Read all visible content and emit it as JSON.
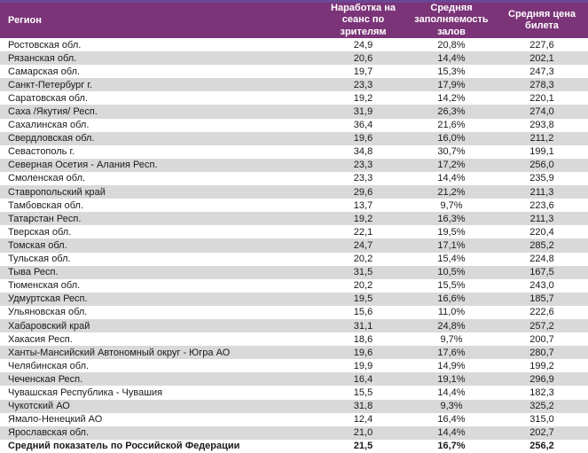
{
  "table": {
    "columns": [
      {
        "label": "Регион"
      },
      {
        "label": "Наработка на сеанс по зрителям"
      },
      {
        "label": "Средняя заполняемость залов"
      },
      {
        "label": "Средняя цена билета"
      }
    ],
    "rows": [
      {
        "region": "Ростовская обл.",
        "sessions": "24,9",
        "occupancy": "20,8%",
        "price": "227,6"
      },
      {
        "region": "Рязанская обл.",
        "sessions": "20,6",
        "occupancy": "14,4%",
        "price": "202,1"
      },
      {
        "region": "Самарская обл.",
        "sessions": "19,7",
        "occupancy": "15,3%",
        "price": "247,3"
      },
      {
        "region": "Санкт-Петербург г.",
        "sessions": "23,3",
        "occupancy": "17,9%",
        "price": "278,3"
      },
      {
        "region": "Саратовская обл.",
        "sessions": "19,2",
        "occupancy": "14,2%",
        "price": "220,1"
      },
      {
        "region": "Саха /Якутия/ Респ.",
        "sessions": "31,9",
        "occupancy": "26,3%",
        "price": "274,0"
      },
      {
        "region": "Сахалинская обл.",
        "sessions": "36,4",
        "occupancy": "21,6%",
        "price": "293,8"
      },
      {
        "region": "Свердловская обл.",
        "sessions": "19,6",
        "occupancy": "16,0%",
        "price": "211,2"
      },
      {
        "region": "Севастополь г.",
        "sessions": "34,8",
        "occupancy": "30,7%",
        "price": "199,1"
      },
      {
        "region": "Северная Осетия - Алания Респ.",
        "sessions": "23,3",
        "occupancy": "17,2%",
        "price": "256,0"
      },
      {
        "region": "Смоленская обл.",
        "sessions": "23,3",
        "occupancy": "14,4%",
        "price": "235,9"
      },
      {
        "region": "Ставропольский край",
        "sessions": "29,6",
        "occupancy": "21,2%",
        "price": "211,3"
      },
      {
        "region": "Тамбовская обл.",
        "sessions": "13,7",
        "occupancy": "9,7%",
        "price": "223,6"
      },
      {
        "region": "Татарстан Респ.",
        "sessions": "19,2",
        "occupancy": "16,3%",
        "price": "211,3"
      },
      {
        "region": "Тверская обл.",
        "sessions": "22,1",
        "occupancy": "19,5%",
        "price": "220,4"
      },
      {
        "region": "Томская обл.",
        "sessions": "24,7",
        "occupancy": "17,1%",
        "price": "285,2"
      },
      {
        "region": "Тульская обл.",
        "sessions": "20,2",
        "occupancy": "15,4%",
        "price": "224,8"
      },
      {
        "region": "Тыва Респ.",
        "sessions": "31,5",
        "occupancy": "10,5%",
        "price": "167,5"
      },
      {
        "region": "Тюменская обл.",
        "sessions": "20,2",
        "occupancy": "15,5%",
        "price": "243,0"
      },
      {
        "region": "Удмуртская Респ.",
        "sessions": "19,5",
        "occupancy": "16,6%",
        "price": "185,7"
      },
      {
        "region": "Ульяновская обл.",
        "sessions": "15,6",
        "occupancy": "11,0%",
        "price": "222,6"
      },
      {
        "region": "Хабаровский край",
        "sessions": "31,1",
        "occupancy": "24,8%",
        "price": "257,2"
      },
      {
        "region": "Хакасия Респ.",
        "sessions": "18,6",
        "occupancy": "9,7%",
        "price": "200,7"
      },
      {
        "region": "Ханты-Мансийский Автономный округ - Югра АО",
        "sessions": "19,6",
        "occupancy": "17,6%",
        "price": "280,7"
      },
      {
        "region": "Челябинская обл.",
        "sessions": "19,9",
        "occupancy": "14,9%",
        "price": "199,2"
      },
      {
        "region": "Чеченская Респ.",
        "sessions": "16,4",
        "occupancy": "19,1%",
        "price": "296,9"
      },
      {
        "region": "Чувашская Республика - Чувашия",
        "sessions": "15,5",
        "occupancy": "14,4%",
        "price": "182,3"
      },
      {
        "region": "Чукотский АО",
        "sessions": "31,8",
        "occupancy": "9,3%",
        "price": "325,2"
      },
      {
        "region": "Ямало-Ненецкий АО",
        "sessions": "12,4",
        "occupancy": "16,4%",
        "price": "315,0"
      },
      {
        "region": "Ярославская обл.",
        "sessions": "21,0",
        "occupancy": "14,4%",
        "price": "202,7"
      }
    ],
    "summary_row": {
      "region": "Средний показатель по Российской Федерации",
      "sessions": "21,5",
      "occupancy": "16,7%",
      "price": "256,2"
    }
  },
  "colors": {
    "top_strip": "#6C4796",
    "header_bg": "#7B3478",
    "header_text": "#FFFFFF",
    "row_alt_bg": "#D9D9D9",
    "body_text": "#1A1A1A"
  }
}
